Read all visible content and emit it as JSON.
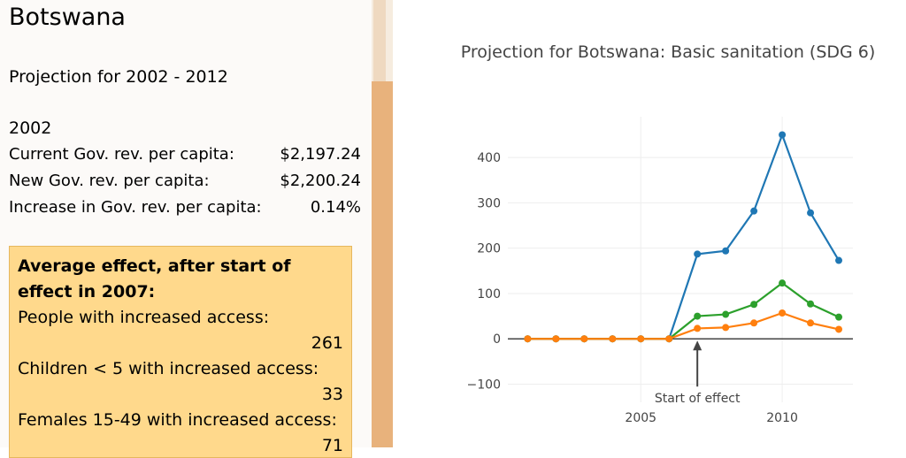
{
  "sidebar": {
    "country": "Botswana",
    "projection_range": "Projection for 2002 - 2012",
    "year": "2002",
    "stats": [
      {
        "label": "Current Gov. rev. per capita:",
        "value": "$2,197.24"
      },
      {
        "label": "New Gov. rev. per capita:",
        "value": "$2,200.24"
      },
      {
        "label": "Increase in Gov. rev. per capita:",
        "value": "0.14%"
      }
    ],
    "effect": {
      "title": "Average effect, after start of effect in 2007:",
      "items": [
        {
          "label": "People with increased access:",
          "value": "261"
        },
        {
          "label": "Children < 5 with increased access:",
          "value": "33"
        },
        {
          "label": "Females 15-49 with increased access:",
          "value": "71"
        }
      ]
    }
  },
  "chart_data": {
    "type": "line",
    "title": "Projection for Botswana: Basic sanitation (SDG 6)",
    "xlabel": "",
    "ylabel": "",
    "x": [
      2001,
      2002,
      2003,
      2004,
      2005,
      2006,
      2007,
      2008,
      2009,
      2010,
      2011,
      2012
    ],
    "series": [
      {
        "color": "#1f77b4",
        "values": [
          0,
          0,
          0,
          0,
          0,
          0,
          187,
          194,
          282,
          450,
          278,
          173
        ]
      },
      {
        "color": "#2ca02c",
        "values": [
          0,
          0,
          0,
          0,
          0,
          0,
          50,
          54,
          76,
          123,
          77,
          48
        ]
      },
      {
        "color": "#ff7f0e",
        "values": [
          0,
          0,
          0,
          0,
          0,
          0,
          23,
          25,
          35,
          57,
          35,
          21
        ]
      }
    ],
    "xlim": [
      2000.3,
      2012.5
    ],
    "ylim": [
      -140,
      490
    ],
    "xticks": [
      2005,
      2010
    ],
    "xtick_labels": [
      "2005",
      "2010"
    ],
    "yticks": [
      -100,
      0,
      100,
      200,
      300,
      400
    ],
    "ytick_labels": [
      "−100",
      "0",
      "100",
      "200",
      "300",
      "400"
    ],
    "annotation": {
      "text": "Start of effect",
      "x": 2007,
      "y": 0
    },
    "grid": true,
    "legend": "none"
  }
}
